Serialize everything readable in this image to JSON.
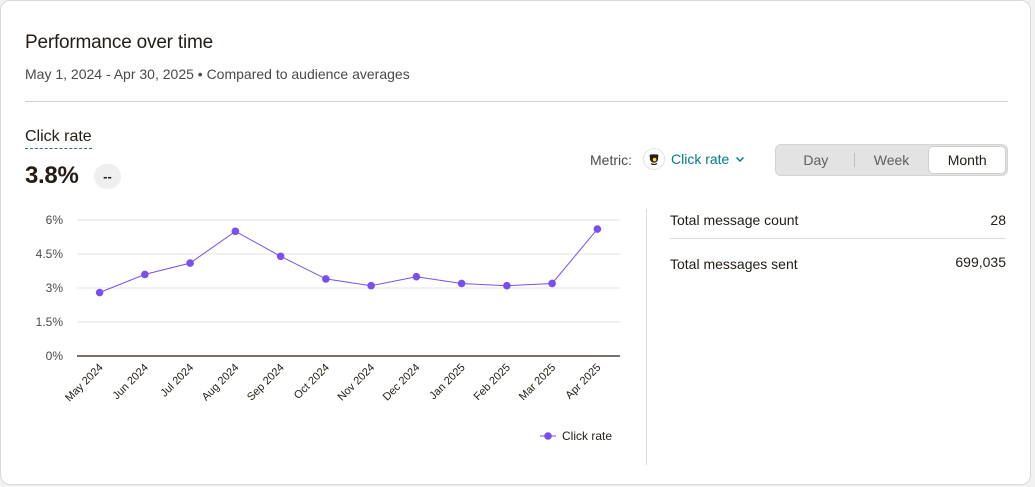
{
  "header": {
    "title": "Performance over time",
    "subtitle": "May 1, 2024 - Apr 30, 2025 • Compared to audience averages"
  },
  "summary": {
    "metric_name": "Click rate",
    "metric_value": "3.8%",
    "change_badge": "--"
  },
  "controls": {
    "metric_label": "Metric:",
    "metric_value": "Click rate",
    "metric_icon": "mailchimp-logo-icon",
    "granularity": [
      "Day",
      "Week",
      "Month"
    ],
    "granularity_selected": "Month"
  },
  "stats": [
    {
      "label": "Total message count",
      "value": "28"
    },
    {
      "label": "Total messages sent",
      "value": "699,035"
    }
  ],
  "colors": {
    "series": "#7b4ef2",
    "accent_teal": "#007c89"
  },
  "chart_data": {
    "type": "line",
    "title": "",
    "xlabel": "",
    "ylabel": "",
    "x": [
      "May 2024",
      "Jun 2024",
      "Jul 2024",
      "Aug 2024",
      "Sep 2024",
      "Oct 2024",
      "Nov 2024",
      "Dec 2024",
      "Jan 2025",
      "Feb 2025",
      "Mar 2025",
      "Apr 2025"
    ],
    "series": [
      {
        "name": "Click rate",
        "values": [
          2.8,
          3.6,
          4.1,
          5.5,
          4.4,
          3.4,
          3.1,
          3.5,
          3.2,
          3.1,
          3.2,
          5.6
        ]
      }
    ],
    "y_ticks": [
      "0%",
      "1.5%",
      "3%",
      "4.5%",
      "6%"
    ],
    "ylim": [
      0,
      6
    ],
    "grid": true,
    "legend_position": "bottom-right"
  }
}
